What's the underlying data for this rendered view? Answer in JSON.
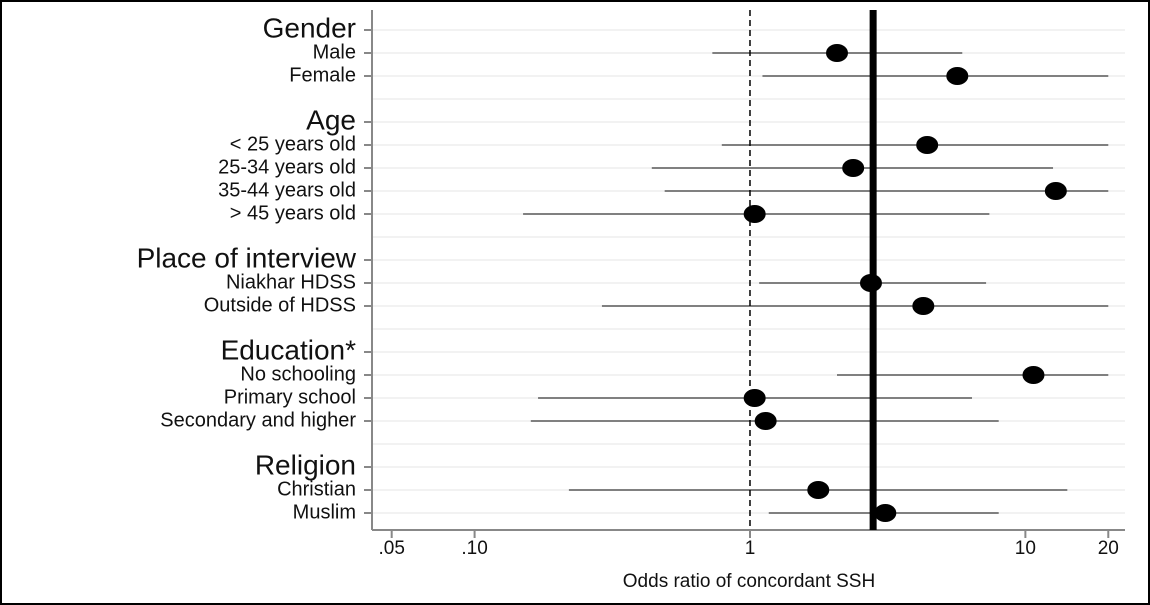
{
  "chart_data": {
    "type": "forest",
    "x_label": "Odds ratio of concordant SSH",
    "x_scale": "log",
    "xlim": [
      0.04,
      23
    ],
    "xticks": [
      {
        "value": 0.05,
        "label": ".05"
      },
      {
        "value": 0.1,
        "label": ".10"
      },
      1,
      10,
      20
    ],
    "null_line": 1,
    "reference_line": 2.8,
    "grid": true,
    "color": "#000000",
    "groups": [
      {
        "name": "Gender",
        "items": [
          {
            "label": "Male",
            "value": 2.07,
            "lower": 0.73,
            "upper": 5.9
          },
          {
            "label": "Female",
            "value": 5.66,
            "lower": 1.11,
            "upper": 20
          }
        ]
      },
      {
        "name": "Age",
        "items": [
          {
            "label": "< 25 years old",
            "value": 4.4,
            "lower": 0.79,
            "upper": 20
          },
          {
            "label": "25-34 years old",
            "value": 2.37,
            "lower": 0.44,
            "upper": 12.6
          },
          {
            "label": "35-44 years old",
            "value": 12.9,
            "lower": 0.49,
            "upper": 20
          },
          {
            "label": "> 45 years old",
            "value": 1.04,
            "lower": 0.15,
            "upper": 7.4
          }
        ]
      },
      {
        "name": "Place of interview",
        "items": [
          {
            "label": "Niakhar HDSS",
            "value": 2.75,
            "lower": 1.08,
            "upper": 7.2
          },
          {
            "label": "Outside of HDSS",
            "value": 4.26,
            "lower": 0.29,
            "upper": 20
          }
        ]
      },
      {
        "name": "Education*",
        "items": [
          {
            "label": "No schooling",
            "value": 10.7,
            "lower": 2.07,
            "upper": 20
          },
          {
            "label": "Primary school",
            "value": 1.04,
            "lower": 0.17,
            "upper": 6.4
          },
          {
            "label": "Secondary and higher",
            "value": 1.14,
            "lower": 0.16,
            "upper": 8.0
          }
        ]
      },
      {
        "name": "Religion",
        "items": [
          {
            "label": "Christian",
            "value": 1.77,
            "lower": 0.22,
            "upper": 14.2
          },
          {
            "label": "Muslim",
            "value": 3.1,
            "lower": 1.17,
            "upper": 8.0
          }
        ]
      }
    ]
  }
}
